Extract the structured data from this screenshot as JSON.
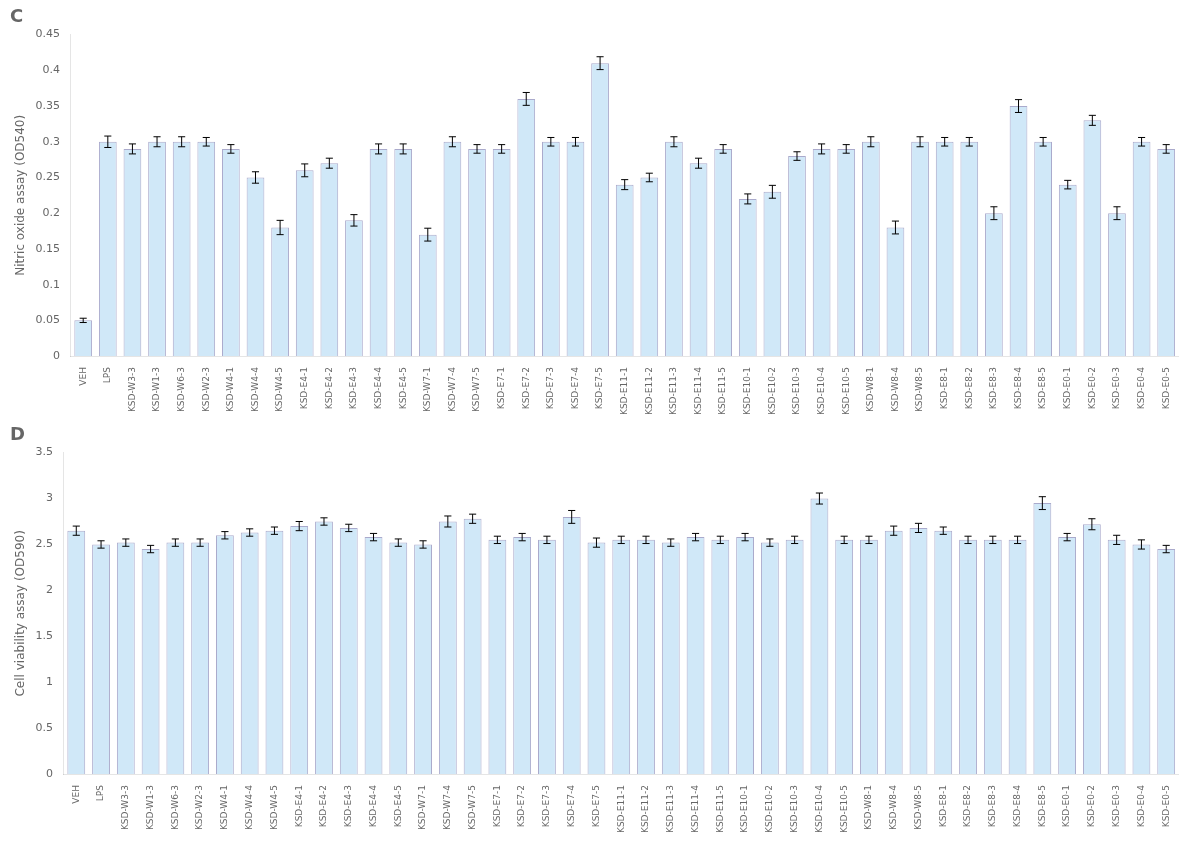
{
  "chart_data": [
    {
      "type": "bar",
      "title": "C",
      "ylabel": "Nitric oxide assay (OD540)",
      "categories": [
        "VEH",
        "LPS",
        "KSD-W3-3",
        "KSD-W1-3",
        "KSD-W6-3",
        "KSD-W2-3",
        "KSD-W4-1",
        "KSD-W4-4",
        "KSD-W4-5",
        "KSD-E4-1",
        "KSD-E4-2",
        "KSD-E4-3",
        "KSD-E4-4",
        "KSD-E4-5",
        "KSD-W7-1",
        "KSD-W7-4",
        "KSD-W7-5",
        "KSD-E7-1",
        "KSD-E7-2",
        "KSD-E7-3",
        "KSD-E7-4",
        "KSD-E7-5",
        "KSD-E11-1",
        "KSD-E11-2",
        "KSD-E11-3",
        "KSD-E11-4",
        "KSD-E11-5",
        "KSD-E10-1",
        "KSD-E10-2",
        "KSD-E10-3",
        "KSD-E10-4",
        "KSD-E10-5",
        "KSD-W8-1",
        "KSD-W8-4",
        "KSD-W8-5",
        "KSD-E8-1",
        "KSD-E8-2",
        "KSD-E8-3",
        "KSD-E8-4",
        "KSD-E8-5",
        "KSD-E0-1",
        "KSD-E0-2",
        "KSD-E0-3",
        "KSD-E0-4",
        "KSD-E0-5"
      ],
      "values": [
        0.05,
        0.3,
        0.29,
        0.3,
        0.3,
        0.3,
        0.29,
        0.25,
        0.18,
        0.26,
        0.27,
        0.19,
        0.29,
        0.29,
        0.17,
        0.3,
        0.29,
        0.29,
        0.36,
        0.3,
        0.3,
        0.41,
        0.24,
        0.25,
        0.3,
        0.27,
        0.29,
        0.22,
        0.23,
        0.28,
        0.29,
        0.29,
        0.3,
        0.18,
        0.3,
        0.3,
        0.3,
        0.2,
        0.35,
        0.3,
        0.24,
        0.33,
        0.2,
        0.3,
        0.29
      ],
      "errors": [
        0.003,
        0.008,
        0.007,
        0.007,
        0.007,
        0.006,
        0.006,
        0.008,
        0.01,
        0.009,
        0.007,
        0.008,
        0.007,
        0.007,
        0.009,
        0.007,
        0.006,
        0.006,
        0.009,
        0.006,
        0.006,
        0.009,
        0.007,
        0.006,
        0.007,
        0.007,
        0.006,
        0.007,
        0.009,
        0.006,
        0.007,
        0.006,
        0.007,
        0.009,
        0.007,
        0.006,
        0.006,
        0.009,
        0.009,
        0.006,
        0.006,
        0.007,
        0.009,
        0.006,
        0.006
      ],
      "color": "#d0e8f8",
      "ylim": [
        0,
        0.45
      ],
      "yticks": [
        0,
        0.05,
        0.1,
        0.15,
        0.2,
        0.25,
        0.3,
        0.35,
        0.4,
        0.45
      ],
      "grid": false
    },
    {
      "type": "bar",
      "title": "D",
      "ylabel": "Cell viability assay (OD590)",
      "categories": [
        "VEH",
        "LPS",
        "KSD-W3-3",
        "KSD-W1-3",
        "KSD-W6-3",
        "KSD-W2-3",
        "KSD-W4-1",
        "KSD-W4-4",
        "KSD-W4-5",
        "KSD-E4-1",
        "KSD-E4-2",
        "KSD-E4-3",
        "KSD-E4-4",
        "KSD-E4-5",
        "KSD-W7-1",
        "KSD-W7-4",
        "KSD-W7-5",
        "KSD-E7-1",
        "KSD-E7-2",
        "KSD-E7-3",
        "KSD-E7-4",
        "KSD-E7-5",
        "KSD-E11-1",
        "KSD-E11-2",
        "KSD-E11-3",
        "KSD-E11-4",
        "KSD-E11-5",
        "KSD-E10-1",
        "KSD-E10-2",
        "KSD-E10-3",
        "KSD-E10-4",
        "KSD-E10-5",
        "KSD-W8-1",
        "KSD-W8-4",
        "KSD-W8-5",
        "KSD-E8-1",
        "KSD-E8-2",
        "KSD-E8-3",
        "KSD-E8-4",
        "KSD-E8-5",
        "KSD-E0-1",
        "KSD-E0-2",
        "KSD-E0-3",
        "KSD-E0-4",
        "KSD-E0-5"
      ],
      "values": [
        2.65,
        2.5,
        2.52,
        2.45,
        2.52,
        2.52,
        2.6,
        2.63,
        2.65,
        2.7,
        2.75,
        2.68,
        2.58,
        2.52,
        2.5,
        2.75,
        2.78,
        2.55,
        2.58,
        2.55,
        2.8,
        2.52,
        2.55,
        2.55,
        2.52,
        2.58,
        2.55,
        2.58,
        2.52,
        2.55,
        3.0,
        2.55,
        2.55,
        2.65,
        2.68,
        2.65,
        2.55,
        2.55,
        2.55,
        2.95,
        2.58,
        2.72,
        2.55,
        2.5,
        2.45
      ],
      "errors": [
        0.05,
        0.04,
        0.04,
        0.04,
        0.04,
        0.04,
        0.04,
        0.04,
        0.04,
        0.05,
        0.04,
        0.04,
        0.04,
        0.04,
        0.04,
        0.06,
        0.05,
        0.04,
        0.04,
        0.04,
        0.07,
        0.05,
        0.04,
        0.04,
        0.04,
        0.04,
        0.04,
        0.04,
        0.04,
        0.04,
        0.06,
        0.04,
        0.04,
        0.05,
        0.05,
        0.04,
        0.04,
        0.04,
        0.04,
        0.07,
        0.04,
        0.06,
        0.05,
        0.05,
        0.04
      ],
      "color": "#d0e8f8",
      "ylim": [
        0,
        3.5
      ],
      "yticks": [
        0,
        0.5,
        1,
        1.5,
        2,
        2.5,
        3,
        3.5
      ],
      "grid": false
    }
  ]
}
